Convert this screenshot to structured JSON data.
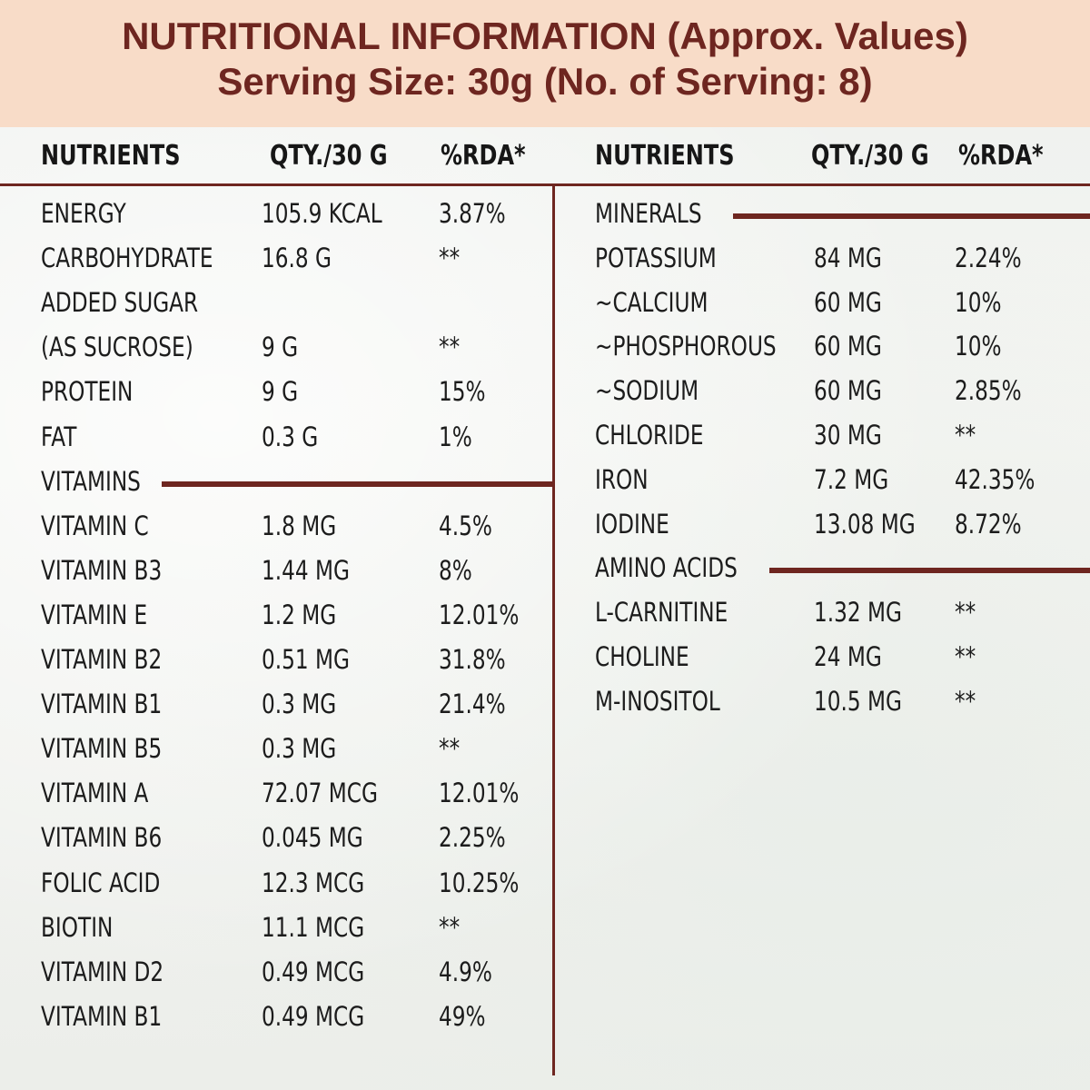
{
  "banner": {
    "title": "NUTRITIONAL INFORMATION (Approx. Values)",
    "subtitle": "Serving Size: 30g (No. of Serving: 8)"
  },
  "headers": {
    "nutrients": "NUTRIENTS",
    "qty": "QTY./30 G",
    "rda": "%RDA*"
  },
  "left_table": [
    {
      "name": "ENERGY",
      "qty": "105.9 KCAL",
      "rda": "3.87%"
    },
    {
      "name": "CARBOHYDRATE",
      "qty": "16.8 G",
      "rda": "**"
    },
    {
      "name": "ADDED SUGAR",
      "qty": "",
      "rda": ""
    },
    {
      "name": "(AS SUCROSE)",
      "qty": "9 G",
      "rda": "**"
    },
    {
      "name": "PROTEIN",
      "qty": "9 G",
      "rda": "15%"
    },
    {
      "name": "FAT",
      "qty": "0.3 G",
      "rda": "1%"
    },
    {
      "name": "VITAMINS",
      "qty": "",
      "rda": "",
      "section": true
    },
    {
      "name": "VITAMIN C",
      "qty": "1.8 MG",
      "rda": "4.5%"
    },
    {
      "name": "VITAMIN B3",
      "qty": "1.44 MG",
      "rda": "8%"
    },
    {
      "name": "VITAMIN E",
      "qty": "1.2 MG",
      "rda": "12.01%"
    },
    {
      "name": "VITAMIN B2",
      "qty": "0.51 MG",
      "rda": "31.8%"
    },
    {
      "name": "VITAMIN B1",
      "qty": "0.3 MG",
      "rda": "21.4%"
    },
    {
      "name": "VITAMIN B5",
      "qty": "0.3 MG",
      "rda": "**"
    },
    {
      "name": "VITAMIN A",
      "qty": "72.07 MCG",
      "rda": "12.01%"
    },
    {
      "name": "VITAMIN B6",
      "qty": "0.045 MG",
      "rda": "2.25%"
    },
    {
      "name": "FOLIC ACID",
      "qty": "12.3 MCG",
      "rda": "10.25%"
    },
    {
      "name": "BIOTIN",
      "qty": "11.1 MCG",
      "rda": "**"
    },
    {
      "name": "VITAMIN D2",
      "qty": "0.49 MCG",
      "rda": "4.9%"
    },
    {
      "name": "VITAMIN  B1",
      "qty": "0.49 MCG",
      "rda": "49%"
    }
  ],
  "right_table": [
    {
      "name": "MINERALS",
      "qty": "",
      "rda": "",
      "section": true
    },
    {
      "name": "POTASSIUM",
      "qty": "84 MG",
      "rda": "2.24%"
    },
    {
      "name": "~CALCIUM",
      "qty": "60 MG",
      "rda": "10%"
    },
    {
      "name": "~PHOSPHOROUS",
      "qty": "60 MG",
      "rda": "10%"
    },
    {
      "name": "~SODIUM",
      "qty": "60 MG",
      "rda": "2.85%"
    },
    {
      "name": "CHLORIDE",
      "qty": "30 MG",
      "rda": "**"
    },
    {
      "name": "IRON",
      "qty": "7.2 MG",
      "rda": "42.35%"
    },
    {
      "name": "IODINE",
      "qty": "13.08 MG",
      "rda": "8.72%"
    },
    {
      "name": "AMINO ACIDS",
      "qty": "",
      "rda": "",
      "section": true
    },
    {
      "name": "L-CARNITINE",
      "qty": "1.32 MG",
      "rda": "**"
    },
    {
      "name": "CHOLINE",
      "qty": "24 MG",
      "rda": "**"
    },
    {
      "name": "M-INOSITOL",
      "qty": "10.5 MG",
      "rda": "**"
    }
  ],
  "colors": {
    "banner_bg": "#f8dcc8",
    "accent": "#6e2620",
    "text": "#1c1c1c"
  }
}
